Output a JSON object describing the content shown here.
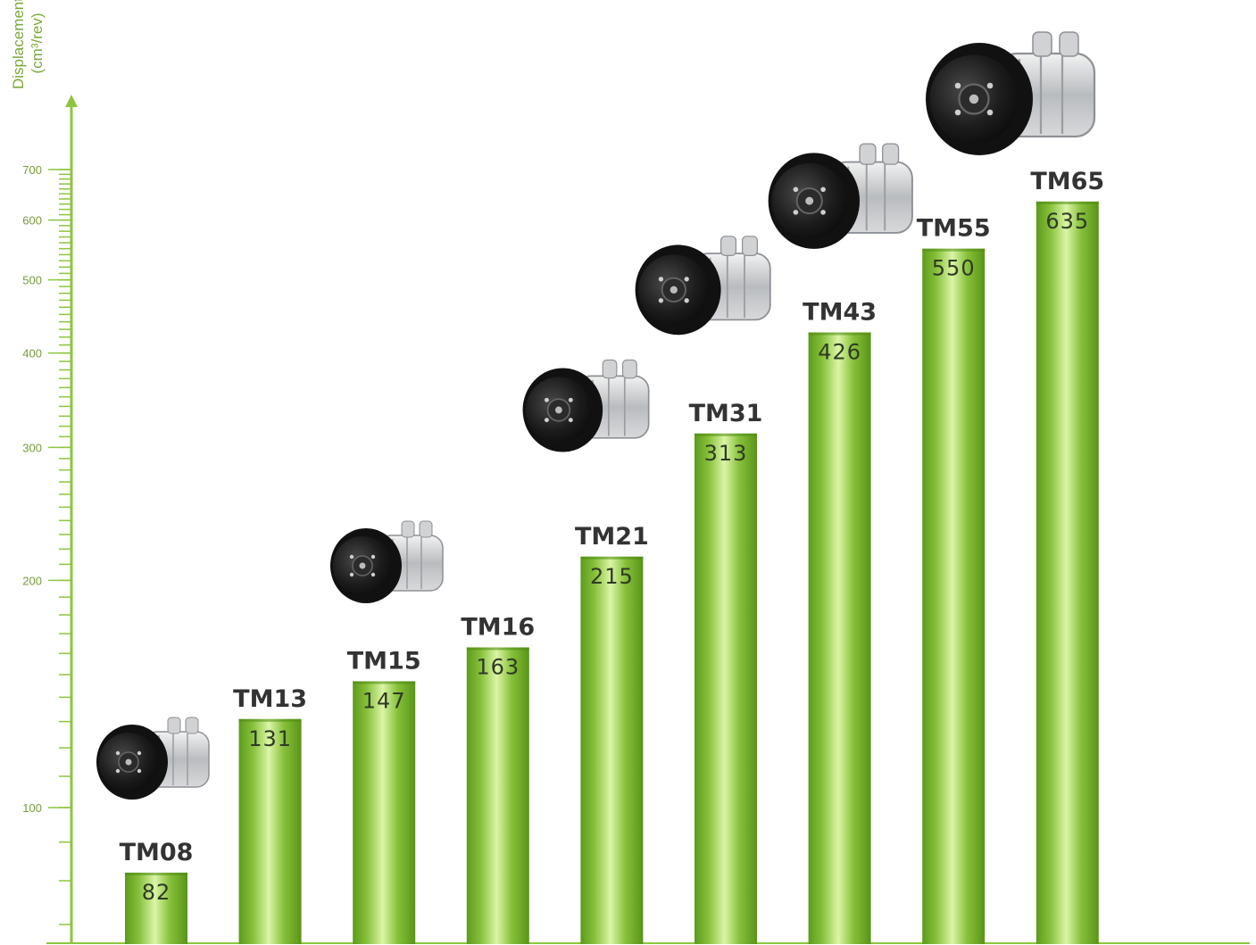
{
  "chart_data": {
    "type": "bar",
    "title": "",
    "ylabel": "Displacement",
    "yunit": "(cm³/rev)",
    "yscale": "log",
    "ylim": [
      50,
      700
    ],
    "yticks": [
      100,
      200,
      300,
      400,
      500,
      600,
      700
    ],
    "grid": false,
    "legend": "none",
    "categories": [
      "TM08",
      "TM13",
      "TM15",
      "TM16",
      "TM21",
      "TM31",
      "TM43",
      "TM55",
      "TM65"
    ],
    "values": [
      82,
      131,
      147,
      163,
      215,
      313,
      426,
      550,
      635
    ],
    "data_labels": [
      "82",
      "131",
      "147",
      "163",
      "215",
      "313",
      "426",
      "550",
      "635"
    ],
    "compressor_images": [
      "TM08",
      "TM15",
      "TM21",
      "TM31",
      "TM43",
      "TM65"
    ],
    "colors": {
      "bar_dark": "#5e9a1c",
      "bar_light": "#d6f2a0",
      "axis": "#8cc63f",
      "tick_label": "#7a9a3a",
      "value_label": "#2f3a25",
      "category_label": "#333333"
    }
  }
}
